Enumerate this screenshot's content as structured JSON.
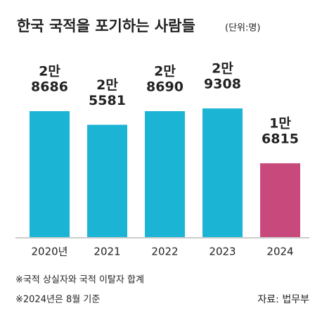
{
  "chart_data": {
    "type": "bar",
    "title": "한국 국적을 포기하는 사람들",
    "unit": "(단위:명)",
    "categories": [
      "2020년",
      "2021",
      "2022",
      "2023",
      "2024"
    ],
    "values": [
      28686,
      25581,
      28690,
      29308,
      16815
    ],
    "value_labels": [
      [
        "2만",
        "8686"
      ],
      [
        "2만",
        "5581"
      ],
      [
        "2만",
        "8690"
      ],
      [
        "2만",
        "9308"
      ],
      [
        "1만",
        "6815"
      ]
    ],
    "colors": [
      "#1cb4d4",
      "#1cb4d4",
      "#1cb4d4",
      "#1cb4d4",
      "#c84a7c"
    ],
    "notes": [
      "※국적 상실자와 국적 이탈자 합계",
      "※2024년은 8월 기준"
    ],
    "source": "자료: 법무부"
  }
}
